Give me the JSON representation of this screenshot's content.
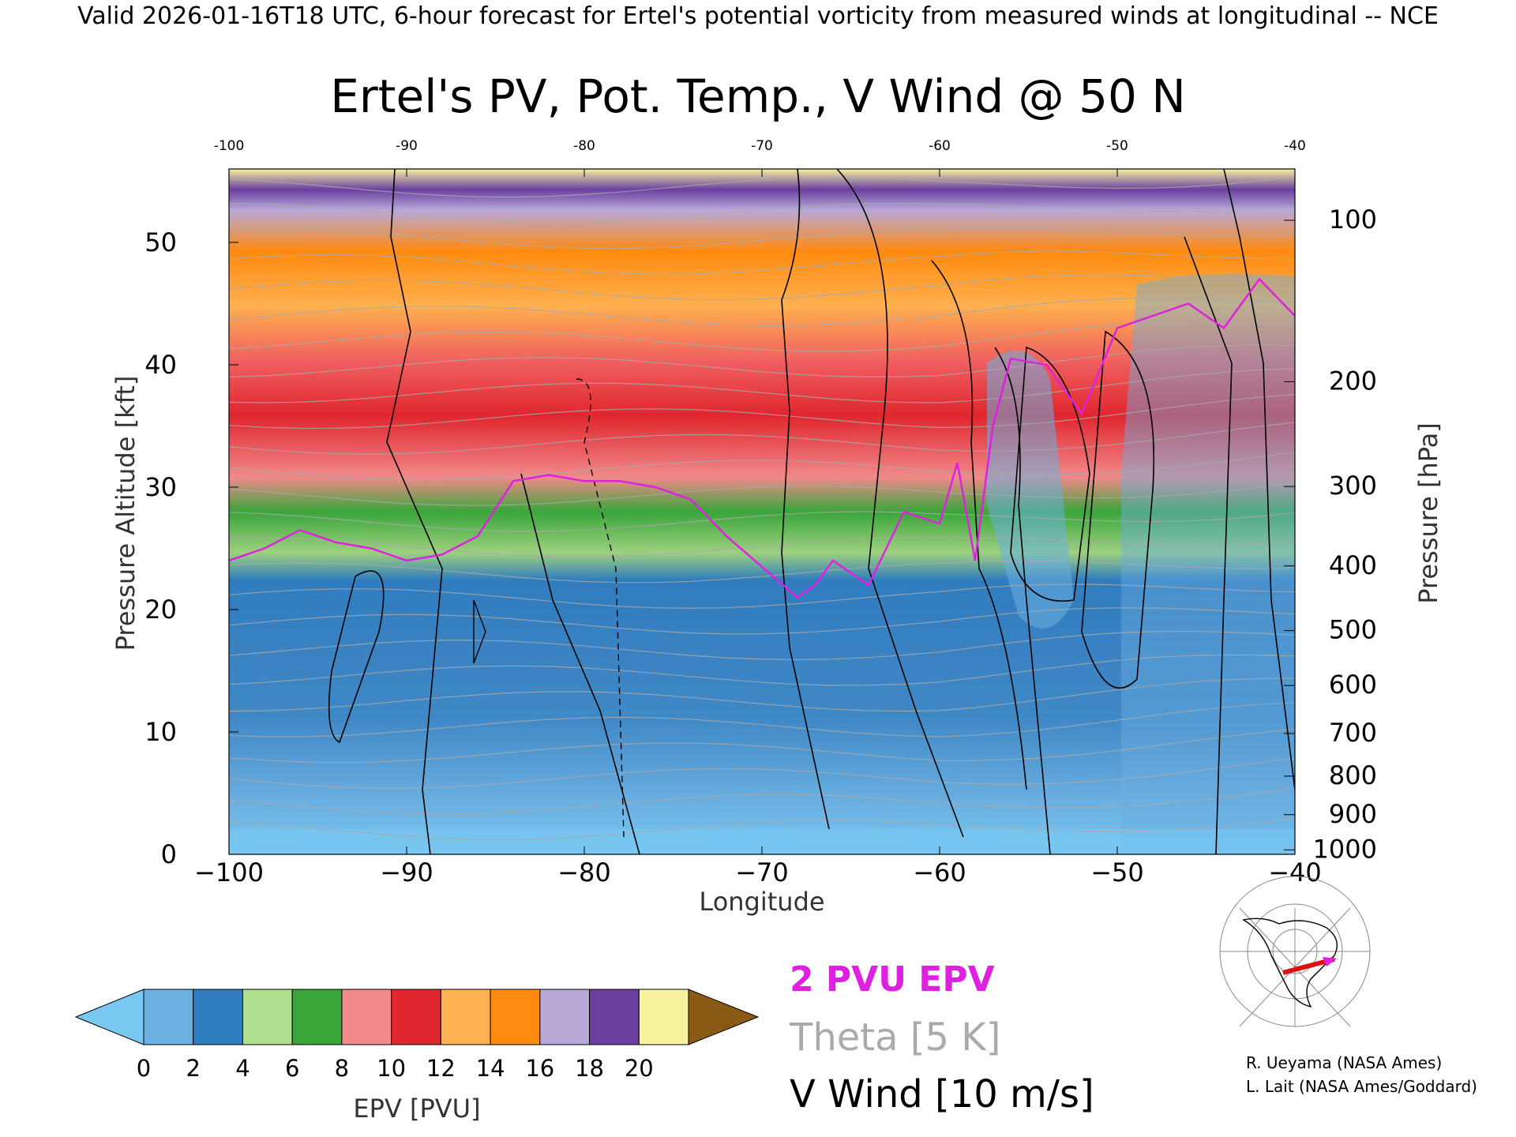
{
  "header": "Valid 2026-01-16T18 UTC, 6-hour forecast for Ertel's potential vorticity from measured winds at longitudinal -- NCE",
  "colors": {
    "pv_contour": "#e020e0",
    "theta": "#aaaaaa",
    "wind": "#000000",
    "map_path": "#dd1111"
  },
  "chart_data": {
    "type": "heatmap",
    "title": "Ertel's PV, Pot. Temp., V Wind @ 50 N",
    "xlabel": "Longitude",
    "ylabel": "Pressure Altitude [kft]",
    "y2label": "Pressure [hPa]",
    "x_ticks": [
      -100,
      -90,
      -80,
      -70,
      -60,
      -50,
      -40
    ],
    "x_tick_labels": [
      "−100",
      "−90",
      "−80",
      "−70",
      "−60",
      "−50",
      "−40"
    ],
    "xlim": [
      -100,
      -40
    ],
    "y_ticks": [
      0,
      10,
      20,
      30,
      40,
      50
    ],
    "ylim": [
      0,
      56
    ],
    "pressure_ticks": [
      100,
      200,
      300,
      400,
      500,
      600,
      700,
      800,
      900,
      1000
    ],
    "tropopause_2pvu_kft": [
      [
        -100,
        24
      ],
      [
        -98,
        25
      ],
      [
        -96,
        26.5
      ],
      [
        -94,
        25.5
      ],
      [
        -92,
        25
      ],
      [
        -90,
        24
      ],
      [
        -88,
        24.5
      ],
      [
        -86,
        26
      ],
      [
        -84,
        30.5
      ],
      [
        -82,
        31
      ],
      [
        -80,
        30.5
      ],
      [
        -78,
        30.5
      ],
      [
        -76,
        30
      ],
      [
        -74,
        29
      ],
      [
        -72,
        26
      ],
      [
        -70,
        23.5
      ],
      [
        -68,
        21
      ],
      [
        -67,
        22
      ],
      [
        -66,
        24
      ],
      [
        -64,
        22
      ],
      [
        -62,
        28
      ],
      [
        -60,
        27
      ],
      [
        -59,
        32
      ],
      [
        -58,
        24
      ],
      [
        -57,
        35
      ],
      [
        -56,
        40.5
      ],
      [
        -54,
        40
      ],
      [
        -52,
        36
      ],
      [
        -50,
        43
      ],
      [
        -48,
        44
      ],
      [
        -46,
        45
      ],
      [
        -44,
        43
      ],
      [
        -42,
        47
      ],
      [
        -40,
        44
      ]
    ],
    "colorbar": {
      "label": "EPV [PVU]",
      "ticks": [
        0,
        2,
        4,
        6,
        8,
        10,
        12,
        14,
        16,
        18,
        20
      ],
      "colors": [
        "#6ab0e0",
        "#2e7cbf",
        "#b0e090",
        "#3aa53a",
        "#f08a8a",
        "#e0262e",
        "#ffb050",
        "#ff8a10",
        "#b8a8d8",
        "#6a3fa0",
        "#f6f2a0"
      ],
      "under_color": "#78c8f2",
      "over_color": "#8a5a14"
    },
    "legend": {
      "pv": "2 PVU EPV",
      "theta": "Theta [5 K]",
      "wind": "V Wind [10 m/s]"
    }
  },
  "credits": {
    "line1": "R. Ueyama (NASA Ames)",
    "line2": "L. Lait (NASA Ames/Goddard)"
  }
}
